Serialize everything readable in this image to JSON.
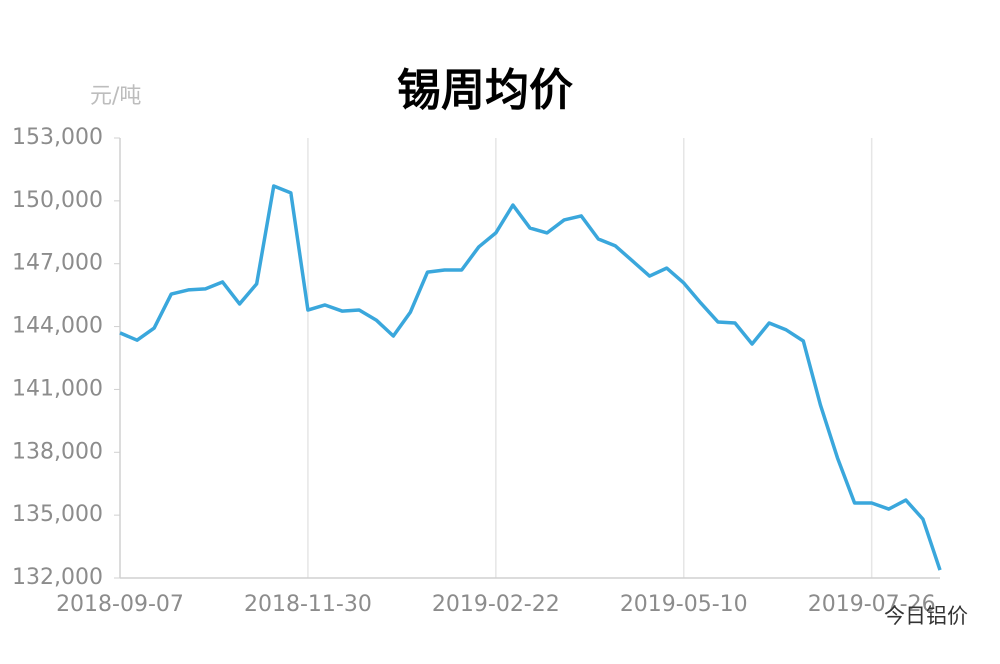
{
  "chart_data": {
    "type": "line",
    "title": "锡周均价",
    "y_label": "元/吨",
    "watermark": "今日铝价",
    "categories": [
      "2018-09-07",
      null,
      null,
      null,
      null,
      null,
      null,
      null,
      null,
      null,
      null,
      "2018-11-30",
      null,
      null,
      null,
      null,
      null,
      null,
      null,
      null,
      null,
      null,
      "2019-02-22",
      null,
      null,
      null,
      null,
      null,
      null,
      null,
      null,
      null,
      null,
      "2019-05-10",
      null,
      null,
      null,
      null,
      null,
      null,
      null,
      null,
      null,
      null,
      "2019-07-26",
      null,
      null,
      null,
      null
    ],
    "series": [
      {
        "name": "锡周均价",
        "color": "#3aa7dc",
        "values": [
          143700,
          143350,
          143930,
          145550,
          145750,
          145800,
          146130,
          145080,
          146040,
          150710,
          150380,
          144790,
          145030,
          144740,
          144790,
          144310,
          143550,
          144690,
          146600,
          146700,
          146700,
          147800,
          148470,
          149800,
          148700,
          148470,
          149090,
          149280,
          148180,
          147850,
          147130,
          146410,
          146790,
          146080,
          145120,
          144220,
          144170,
          143170,
          144170,
          143840,
          143310,
          140260,
          137730,
          135580,
          135580,
          135290,
          135720,
          134810,
          132380
        ]
      }
    ],
    "ylim": [
      132000,
      153000
    ],
    "yticks": [
      {
        "value": 132000,
        "label": "132,000"
      },
      {
        "value": 135000,
        "label": "135,000"
      },
      {
        "value": 138000,
        "label": "138,000"
      },
      {
        "value": 141000,
        "label": "141,000"
      },
      {
        "value": 144000,
        "label": "144,000"
      },
      {
        "value": 147000,
        "label": "147,000"
      },
      {
        "value": 150000,
        "label": "150,000"
      },
      {
        "value": 153000,
        "label": "153,000"
      }
    ],
    "grid": true
  }
}
